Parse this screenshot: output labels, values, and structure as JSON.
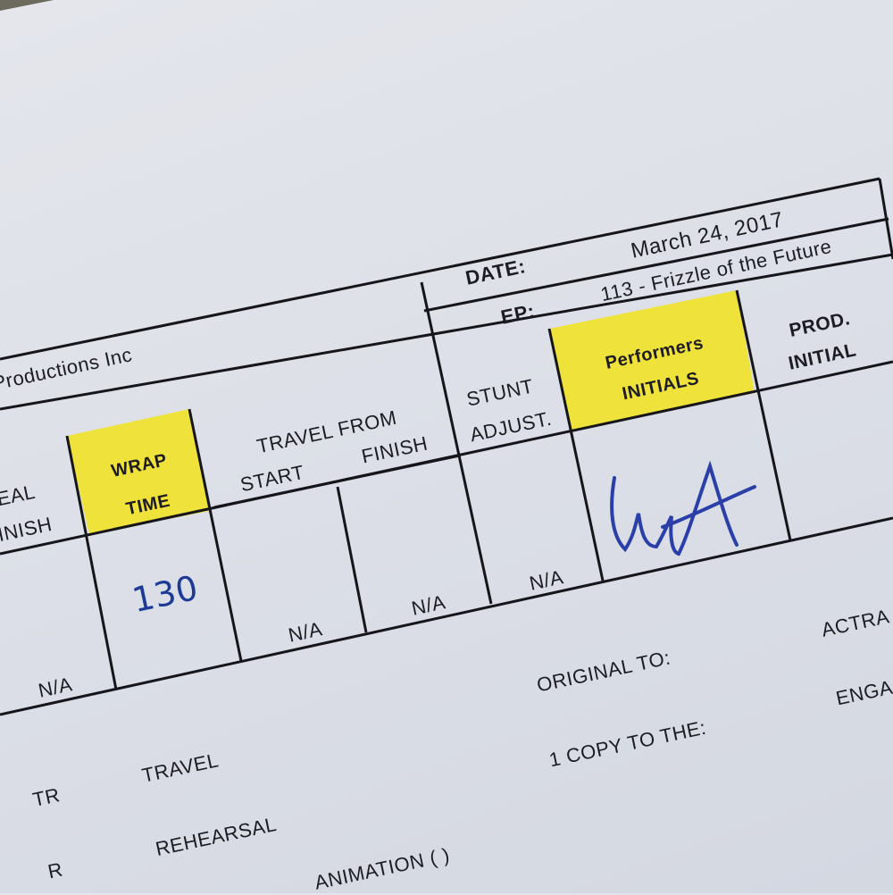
{
  "header": {
    "company": "Productions Inc",
    "date_label": "DATE:",
    "date_value": "March 24, 2017",
    "ep_label": "EP:",
    "ep_value": "113 - Frizzle of the Future"
  },
  "columns": {
    "meal_top": "EAL",
    "meal_bottom": "INISH",
    "wrap_line1": "WRAP",
    "wrap_line2": "TIME",
    "travel_title": "TRAVEL FROM",
    "travel_start": "START",
    "travel_finish": "FINISH",
    "stunt_line1": "STUNT",
    "stunt_line2": "ADJUST.",
    "performers_line1": "Performers",
    "performers_line2": "INITIALS",
    "prod_line1": "PROD.",
    "prod_line2": "INITIAL"
  },
  "row": {
    "meal_finish": "N/A",
    "wrap_time": "130",
    "travel_start": "N/A",
    "travel_finish": "N/A",
    "stunt_adjust": "N/A",
    "performers_initials": "signature"
  },
  "footer": {
    "original_to": "ORIGINAL TO:",
    "actra": "ACTRA",
    "copy_to": "1 COPY TO THE:",
    "enga": "ENGA",
    "tr_code": "TR",
    "tr_label": "TRAVEL",
    "r_code": "R",
    "r_label": "REHEARSAL",
    "animation": "ANIMATION (   )"
  },
  "colors": {
    "highlight": "#efe23a",
    "ink": "#1d3a96",
    "paper": "#dfe2ea"
  }
}
